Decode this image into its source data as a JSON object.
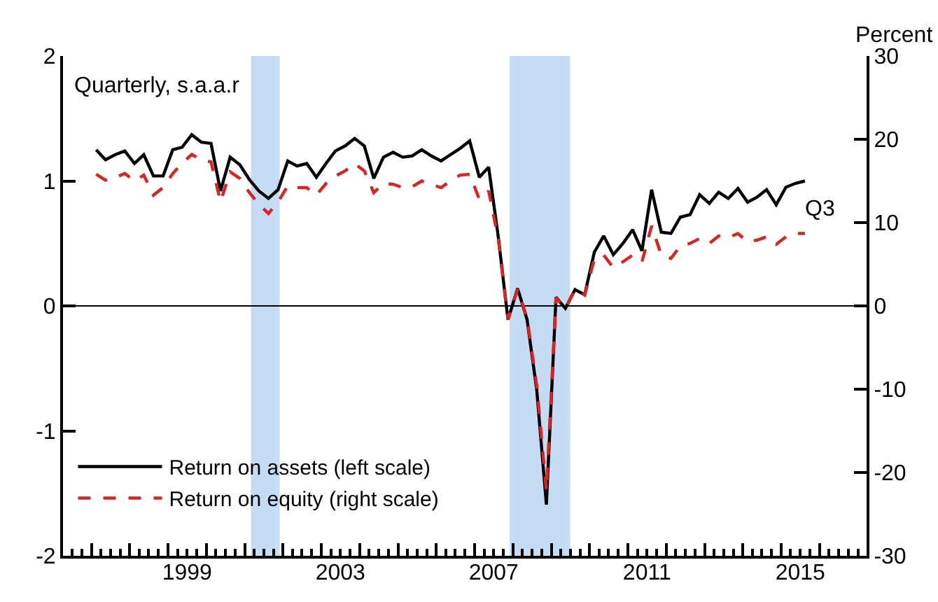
{
  "chart_data": {
    "type": "line",
    "annotations": [
      "Quarterly, s.a.a.r",
      {
        "text": "Q3",
        "x": "2015-08-15",
        "y": 0.98
      }
    ],
    "y2label": "Percent",
    "x": [
      "1997-02-15",
      "1997-05-15",
      "1997-08-15",
      "1997-11-15",
      "1998-02-15",
      "1998-05-15",
      "1998-08-15",
      "1998-11-15",
      "1999-02-15",
      "1999-05-15",
      "1999-08-15",
      "1999-11-15",
      "2000-02-15",
      "2000-05-15",
      "2000-08-15",
      "2000-11-15",
      "2001-02-15",
      "2001-05-15",
      "2001-08-15",
      "2001-11-15",
      "2002-02-15",
      "2002-05-15",
      "2002-08-15",
      "2002-11-15",
      "2003-02-15",
      "2003-05-15",
      "2003-08-15",
      "2003-11-15",
      "2004-02-15",
      "2004-05-15",
      "2004-08-15",
      "2004-11-15",
      "2005-02-15",
      "2005-05-15",
      "2005-08-15",
      "2005-11-15",
      "2006-02-15",
      "2006-05-15",
      "2006-08-15",
      "2006-11-15",
      "2007-02-15",
      "2007-05-15",
      "2007-08-15",
      "2007-11-15",
      "2008-02-15",
      "2008-05-15",
      "2008-08-15",
      "2008-11-15",
      "2009-02-15",
      "2009-05-15",
      "2009-08-15",
      "2009-11-15",
      "2010-02-15",
      "2010-05-15",
      "2010-08-15",
      "2010-11-15",
      "2011-02-15",
      "2011-05-15",
      "2011-08-15",
      "2011-11-15",
      "2012-02-15",
      "2012-05-15",
      "2012-08-15",
      "2012-11-15",
      "2013-02-15",
      "2013-05-15",
      "2013-08-15",
      "2013-11-15",
      "2014-02-15",
      "2014-05-15",
      "2014-08-15",
      "2014-11-15",
      "2015-02-15",
      "2015-05-15",
      "2015-08-15"
    ],
    "series": [
      {
        "name": "Return on assets (left scale)",
        "color": "#000000",
        "line_style": "solid",
        "axis": "y",
        "values": [
          1.25,
          1.17,
          1.21,
          1.24,
          1.14,
          1.21,
          1.04,
          1.04,
          1.25,
          1.27,
          1.37,
          1.31,
          1.3,
          0.92,
          1.19,
          1.13,
          1.01,
          0.92,
          0.86,
          0.93,
          1.16,
          1.12,
          1.14,
          1.03,
          1.14,
          1.24,
          1.28,
          1.34,
          1.28,
          1.02,
          1.19,
          1.23,
          1.19,
          1.2,
          1.25,
          1.2,
          1.16,
          1.21,
          1.26,
          1.32,
          1.03,
          1.11,
          0.55,
          -0.11,
          0.14,
          -0.11,
          -0.67,
          -1.59,
          0.07,
          -0.02,
          0.13,
          0.09,
          0.43,
          0.56,
          0.41,
          0.5,
          0.61,
          0.44,
          0.93,
          0.59,
          0.58,
          0.71,
          0.73,
          0.89,
          0.82,
          0.91,
          0.86,
          0.94,
          0.83,
          0.87,
          0.93,
          0.81,
          0.95,
          0.98,
          1.0
        ]
      },
      {
        "name": "Return on equity (right scale)",
        "color": "#dd2222",
        "line_style": "dashed",
        "axis": "y2",
        "values": [
          15.8,
          15.1,
          15.4,
          15.9,
          15.0,
          15.7,
          13.3,
          14.2,
          15.9,
          17.1,
          18.2,
          17.5,
          17.3,
          12.5,
          16.1,
          15.3,
          13.6,
          12.2,
          11.1,
          12.5,
          14.4,
          14.2,
          14.2,
          13.3,
          14.7,
          15.6,
          16.2,
          17.1,
          16.2,
          13.6,
          14.7,
          14.6,
          14.2,
          14.3,
          15.0,
          14.6,
          14.2,
          15.0,
          15.7,
          15.8,
          12.8,
          13.8,
          8.0,
          -1.6,
          2.0,
          -1.5,
          -9.5,
          -22.2,
          1.0,
          -0.3,
          2.0,
          1.3,
          5.6,
          6.1,
          4.6,
          5.3,
          6.1,
          5.3,
          9.6,
          6.1,
          5.7,
          7.2,
          7.5,
          8.1,
          7.5,
          8.4,
          8.2,
          8.7,
          7.7,
          7.9,
          8.3,
          7.4,
          8.3,
          8.7,
          8.7
        ]
      }
    ],
    "xlim": [
      "1996-04-05",
      "2017-03-25"
    ],
    "xticks": [
      {
        "value": "1997-01-01",
        "label": null
      },
      {
        "value": "1998-01-01",
        "label": null
      },
      {
        "value": "1999-01-01",
        "label": null
      },
      {
        "value": "2000-01-01",
        "label": null
      },
      {
        "value": "2001-01-01",
        "label": null
      },
      {
        "value": "2002-01-01",
        "label": null
      },
      {
        "value": "2003-01-01",
        "label": null
      },
      {
        "value": "2004-01-01",
        "label": null
      },
      {
        "value": "2005-01-01",
        "label": null
      },
      {
        "value": "2006-01-01",
        "label": null
      },
      {
        "value": "2007-01-01",
        "label": null
      },
      {
        "value": "2008-01-01",
        "label": null
      },
      {
        "value": "2009-01-01",
        "label": null
      },
      {
        "value": "2010-01-01",
        "label": null
      },
      {
        "value": "2011-01-01",
        "label": null
      },
      {
        "value": "2012-01-01",
        "label": null
      },
      {
        "value": "2013-01-01",
        "label": null
      },
      {
        "value": "2014-01-01",
        "label": null
      },
      {
        "value": "2015-01-01",
        "label": null
      },
      {
        "value": "2016-01-01",
        "label": null
      },
      {
        "value": "1999-07-02",
        "label": "1999"
      },
      {
        "value": "2003-07-02",
        "label": "2003"
      },
      {
        "value": "2007-07-02",
        "label": "2007"
      },
      {
        "value": "2011-07-02",
        "label": "2011"
      },
      {
        "value": "2015-07-02",
        "label": "2015"
      }
    ],
    "ylim": [
      -2,
      2
    ],
    "yticks": [
      -2,
      -1,
      0,
      1,
      2
    ],
    "y2lim": [
      -30,
      30
    ],
    "y2ticks": [
      -30,
      -20,
      -10,
      0,
      10,
      20,
      30
    ],
    "ref_lines": [
      {
        "axis": "y",
        "value": 0,
        "color": "#000000"
      }
    ],
    "bands": [
      {
        "axis": "x",
        "from": "2001-03-01",
        "to": "2001-11-30",
        "color": "#c5dcf5"
      },
      {
        "axis": "x",
        "from": "2007-12-01",
        "to": "2009-06-30",
        "color": "#c5dcf5"
      }
    ],
    "grid": false,
    "legend": "bottom left"
  }
}
